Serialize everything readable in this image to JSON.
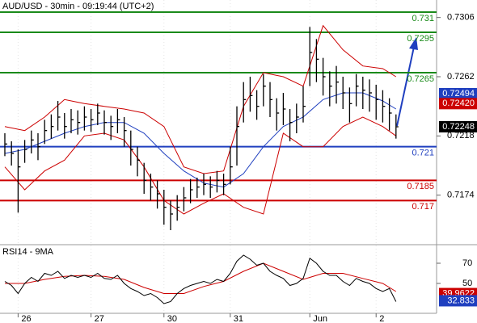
{
  "chart_data": {
    "type": "ohlc",
    "title": "AUD/USD - 30min - 09:19:44 (UTC+2)",
    "xlim": [
      -0.73,
      65.12
    ],
    "xticks": [
      {
        "value": 2,
        "label": "26"
      },
      {
        "value": 13,
        "label": "27"
      },
      {
        "value": 24,
        "label": "30"
      },
      {
        "value": 34,
        "label": "31"
      },
      {
        "value": 46,
        "label": "Jun"
      },
      {
        "value": 56,
        "label": "2"
      }
    ],
    "ylim": [
      0.7139,
      0.7319
    ],
    "yticks": [
      0.7306,
      0.7262,
      0.7218,
      0.7174
    ],
    "bar_color": "#000000",
    "high": [
      0.722,
      0.7214,
      0.7208,
      0.7215,
      0.7222,
      0.722,
      0.723,
      0.7234,
      0.7244,
      0.7235,
      0.7238,
      0.7237,
      0.724,
      0.7238,
      0.7242,
      0.7237,
      0.7233,
      0.7238,
      0.7232,
      0.7222,
      0.721,
      0.7198,
      0.719,
      0.7185,
      0.7178,
      0.717,
      0.7174,
      0.718,
      0.7186,
      0.7187,
      0.719,
      0.7188,
      0.7192,
      0.719,
      0.721,
      0.724,
      0.7258,
      0.7262,
      0.7252,
      0.7264,
      0.7258,
      0.7246,
      0.725,
      0.7238,
      0.7242,
      0.7255,
      0.7299,
      0.729,
      0.7276,
      0.7266,
      0.727,
      0.7262,
      0.7254,
      0.7264,
      0.7262,
      0.726,
      0.7256,
      0.7252,
      0.7246,
      0.7234
    ],
    "low": [
      0.7203,
      0.7196,
      0.7161,
      0.7198,
      0.7205,
      0.72,
      0.7212,
      0.7216,
      0.7222,
      0.7216,
      0.722,
      0.7219,
      0.7222,
      0.7221,
      0.7226,
      0.7219,
      0.7215,
      0.722,
      0.721,
      0.7196,
      0.7188,
      0.7175,
      0.717,
      0.7164,
      0.7152,
      0.7148,
      0.7155,
      0.7162,
      0.7168,
      0.7172,
      0.7174,
      0.7172,
      0.7176,
      0.7174,
      0.7182,
      0.7196,
      0.7228,
      0.7236,
      0.723,
      0.724,
      0.7232,
      0.7222,
      0.7226,
      0.7214,
      0.722,
      0.7228,
      0.7255,
      0.7258,
      0.7248,
      0.724,
      0.7242,
      0.7238,
      0.7228,
      0.724,
      0.7238,
      0.7236,
      0.723,
      0.7228,
      0.7222,
      0.7216
    ],
    "close": [
      0.7212,
      0.7205,
      0.7195,
      0.7208,
      0.7215,
      0.721,
      0.7222,
      0.7225,
      0.7232,
      0.7225,
      0.723,
      0.7228,
      0.7232,
      0.723,
      0.7235,
      0.7228,
      0.7225,
      0.723,
      0.7222,
      0.7208,
      0.72,
      0.7185,
      0.718,
      0.7175,
      0.7165,
      0.716,
      0.7165,
      0.7172,
      0.7178,
      0.718,
      0.7182,
      0.718,
      0.7185,
      0.7182,
      0.7195,
      0.7225,
      0.7245,
      0.7248,
      0.724,
      0.7255,
      0.7245,
      0.7235,
      0.7238,
      0.7228,
      0.7232,
      0.724,
      0.728,
      0.7275,
      0.7262,
      0.7255,
      0.7258,
      0.725,
      0.7242,
      0.7255,
      0.7252,
      0.725,
      0.7245,
      0.724,
      0.7235,
      0.72248
    ],
    "indicator_x": [
      0,
      3,
      6,
      9,
      12,
      15,
      18,
      21,
      24,
      27,
      30,
      33,
      36,
      39,
      42,
      45,
      48,
      51,
      54,
      57,
      59
    ],
    "ma": {
      "color": "#1f3fbf",
      "values": [
        0.7205,
        0.7208,
        0.7214,
        0.722,
        0.7225,
        0.7228,
        0.7228,
        0.722,
        0.7205,
        0.7192,
        0.7183,
        0.718,
        0.719,
        0.721,
        0.7225,
        0.7232,
        0.7245,
        0.725,
        0.725,
        0.7244,
        0.7238
      ]
    },
    "upper_band": {
      "color": "#cc0000",
      "values": [
        0.7225,
        0.7222,
        0.7232,
        0.7245,
        0.7242,
        0.724,
        0.7238,
        0.7235,
        0.7225,
        0.7195,
        0.719,
        0.7192,
        0.724,
        0.7265,
        0.7262,
        0.7255,
        0.73,
        0.7282,
        0.727,
        0.7268,
        0.7262
      ]
    },
    "lower_band": {
      "color": "#cc0000",
      "values": [
        0.7195,
        0.7178,
        0.7192,
        0.72,
        0.7218,
        0.722,
        0.7215,
        0.7195,
        0.717,
        0.716,
        0.7168,
        0.7175,
        0.7165,
        0.716,
        0.722,
        0.721,
        0.721,
        0.7225,
        0.7232,
        0.7225,
        0.7218
      ]
    },
    "levels": [
      {
        "value": 0.731,
        "color": "#1a8a1a"
      },
      {
        "value": 0.7295,
        "color": "#1a8a1a"
      },
      {
        "value": 0.7265,
        "color": "#1a8a1a"
      },
      {
        "value": 0.721,
        "color": "#1f3fbf"
      },
      {
        "value": 0.7185,
        "color": "#cc0000"
      },
      {
        "value": 0.717,
        "color": "#cc0000"
      }
    ],
    "price_tags": [
      {
        "value": 0.72494,
        "color": "#1f3fbf"
      },
      {
        "value": 0.7242,
        "label": "0.72420",
        "color": "#cc0000"
      },
      {
        "value": 0.72248,
        "color": "#000000"
      }
    ],
    "rsi": {
      "title": "RSI14 - 9MA",
      "ylim": [
        22.8,
        86.8
      ],
      "yticks": [
        70,
        50
      ],
      "color": "#000000",
      "values": [
        52,
        48,
        40,
        50,
        56,
        52,
        60,
        58,
        62,
        55,
        58,
        56,
        58,
        56,
        60,
        55,
        54,
        58,
        50,
        45,
        42,
        38,
        40,
        36,
        30,
        32,
        40,
        45,
        48,
        50,
        52,
        50,
        54,
        52,
        60,
        72,
        78,
        74,
        68,
        70,
        62,
        58,
        55,
        48,
        50,
        55,
        75,
        70,
        62,
        58,
        58,
        52,
        48,
        55,
        52,
        50,
        45,
        42,
        45,
        32
      ],
      "ma_color": "#cc0000",
      "ma_values": [
        50,
        50,
        54,
        57,
        58,
        57,
        54,
        46,
        40,
        40,
        47,
        52,
        62,
        70,
        62,
        54,
        60,
        60,
        55,
        50,
        42
      ],
      "tags": [
        {
          "value": 39.9622,
          "color": "#cc0000"
        },
        {
          "value": 32.833,
          "color": "#1f3fbf"
        }
      ]
    }
  }
}
